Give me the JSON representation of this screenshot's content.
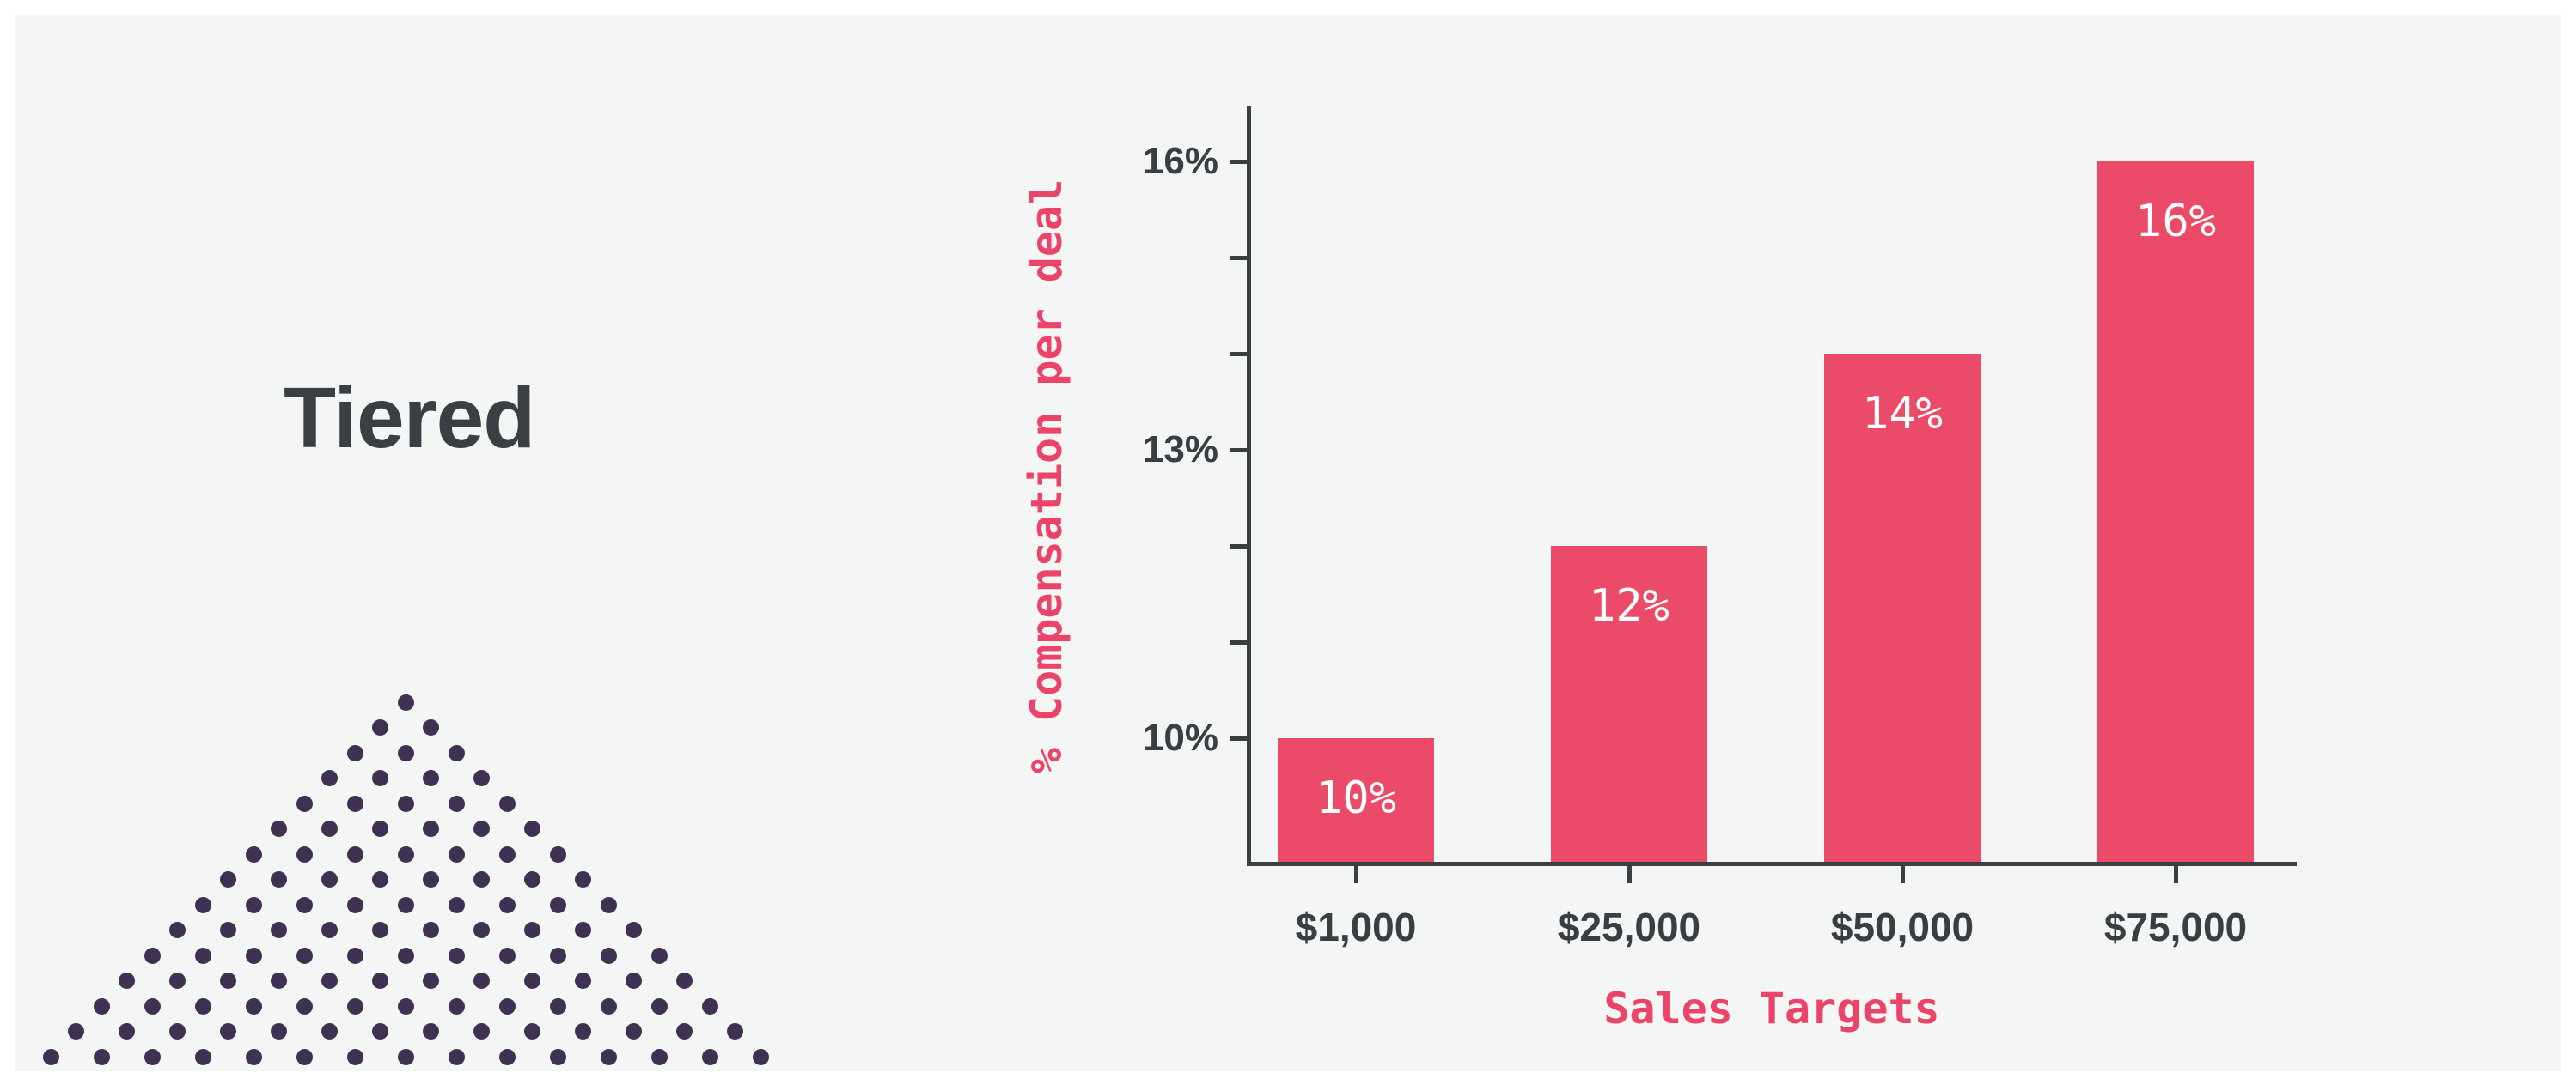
{
  "page": {
    "background": "#ffffff",
    "canvas_background": "#f4f5f5"
  },
  "main": {
    "title": "Tiered",
    "title_color": "#3a3f44"
  },
  "decor": {
    "name": "dotted-triangle",
    "rows": 15,
    "dot_color": "#3e3152"
  },
  "chart_data": {
    "type": "bar",
    "title": "",
    "categories": [
      "$1,000",
      "$25,000",
      "$50,000",
      "$75,000"
    ],
    "values": [
      10,
      12,
      14,
      16
    ],
    "bar_labels": [
      "10%",
      "12%",
      "14%",
      "16%"
    ],
    "xlabel": "Sales Targets",
    "ylabel": "% Compensation per deal",
    "yticks": [
      10,
      11,
      12,
      13,
      14,
      15,
      16
    ],
    "ytick_labels": {
      "10": "10%",
      "13": "13%",
      "16": "16%"
    },
    "ylim": [
      8.7,
      16.6
    ],
    "grid": false,
    "legend": "none",
    "colors": {
      "bar": "#ec4a69",
      "bar_label": "#ffffff",
      "axis": "#3a3f44",
      "tick_label": "#393e43",
      "axis_title": "#ec4468"
    }
  }
}
